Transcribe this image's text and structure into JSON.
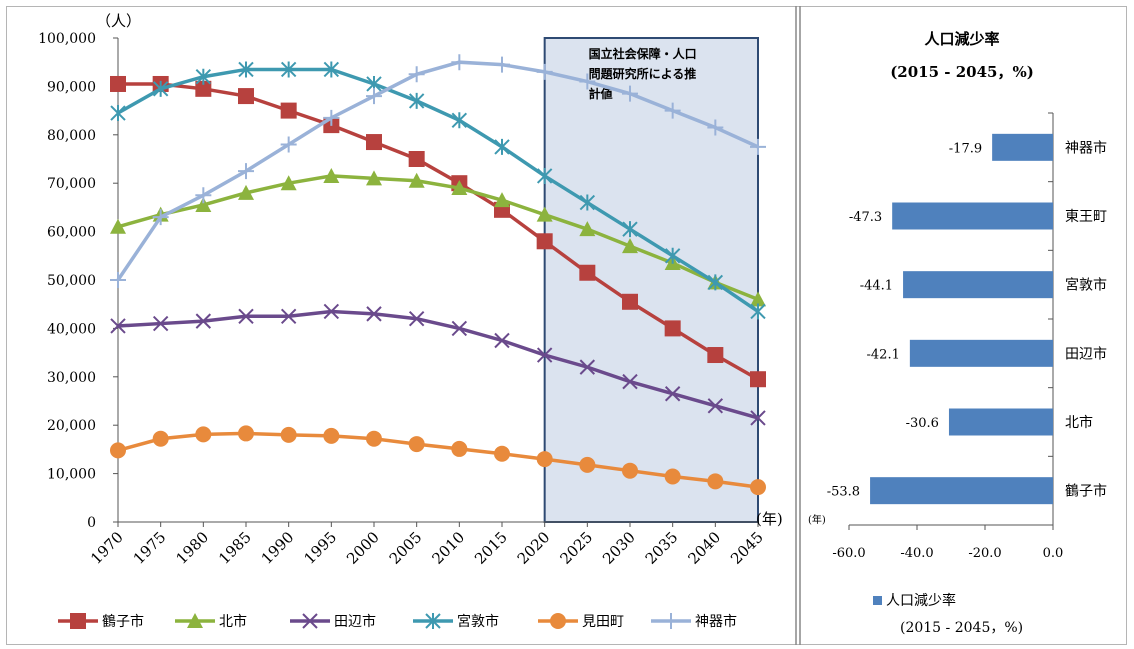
{
  "left_chart": {
    "type": "line",
    "y_unit_label": "（人）",
    "x_unit_label": "(年)",
    "ylim": [
      0,
      100000
    ],
    "yticks": [
      "100,000",
      "90,000",
      "80,000",
      "70,000",
      "60,000",
      "50,000",
      "40,000",
      "30,000",
      "20,000",
      "10,000",
      "0"
    ],
    "ytick_values": [
      100000,
      90000,
      80000,
      70000,
      60000,
      50000,
      40000,
      30000,
      20000,
      10000,
      0
    ],
    "categories": [
      "1970",
      "1975",
      "1980",
      "1985",
      "1990",
      "1995",
      "2000",
      "2005",
      "2010",
      "2015",
      "2020",
      "2025",
      "2030",
      "2035",
      "2040",
      "2045"
    ],
    "annotation": {
      "lines": [
        "国立社会保障・人口",
        "問題研究所による推",
        "計値"
      ],
      "start_category": "2020",
      "end_category": "2045",
      "fill": "#dbe3ef",
      "border": "#2e4a73"
    },
    "series": [
      {
        "name": "鶴子市",
        "color": "#b7413e",
        "marker": "square",
        "values": [
          90500,
          90500,
          89500,
          88000,
          85000,
          82000,
          78500,
          75000,
          70000,
          64500,
          58000,
          51500,
          45500,
          40000,
          34500,
          29500
        ]
      },
      {
        "name": "北市",
        "color": "#8cb33e",
        "marker": "triangle",
        "values": [
          61000,
          63500,
          65500,
          68000,
          70000,
          71500,
          71000,
          70500,
          69000,
          66500,
          63500,
          60500,
          57000,
          53500,
          49500,
          46000
        ]
      },
      {
        "name": "田辺市",
        "color": "#6a4a8c",
        "marker": "x",
        "values": [
          40500,
          41000,
          41500,
          42500,
          42500,
          43500,
          43000,
          42000,
          40000,
          37500,
          34500,
          32000,
          29000,
          26500,
          24000,
          21500
        ]
      },
      {
        "name": "宮敦市",
        "color": "#3e99b0",
        "marker": "asterisk",
        "values": [
          84500,
          89500,
          92000,
          93500,
          93500,
          93500,
          90500,
          87000,
          83000,
          77500,
          71500,
          66000,
          60500,
          55000,
          49500,
          43500
        ]
      },
      {
        "name": "見田町",
        "color": "#e88a3c",
        "marker": "circle",
        "values": [
          14800,
          17200,
          18100,
          18300,
          18000,
          17800,
          17200,
          16100,
          15100,
          14100,
          13000,
          11800,
          10600,
          9400,
          8400,
          7200
        ]
      },
      {
        "name": "神器市",
        "color": "#9ab2d8",
        "marker": "plus",
        "values": [
          50000,
          63000,
          67500,
          72500,
          78000,
          83500,
          88000,
          92500,
          95000,
          94500,
          93000,
          91000,
          88500,
          85000,
          81500,
          77500
        ]
      }
    ]
  },
  "right_chart": {
    "type": "bar",
    "title_line1": "人口減少率",
    "title_line2": "(2015 - 2045，%)",
    "x_unit_label": "(年)",
    "xlim": [
      -60,
      0
    ],
    "xticks": [
      "-60.0",
      "-40.0",
      "-20.0",
      "0.0"
    ],
    "xtick_values": [
      -60,
      -40,
      -20,
      0
    ],
    "categories": [
      "神器市",
      "東王町",
      "宮敦市",
      "田辺市",
      "北市",
      "鶴子市"
    ],
    "values": [
      -17.9,
      -47.3,
      -44.1,
      -42.1,
      -30.6,
      -53.8
    ],
    "value_labels": [
      "-17.9",
      "-47.3",
      "-44.1",
      "-42.1",
      "-30.6",
      "-53.8"
    ],
    "bar_color": "#4f81bd",
    "legend_label": "人口減少率",
    "legend_sub": "(2015 - 2045，%)"
  }
}
